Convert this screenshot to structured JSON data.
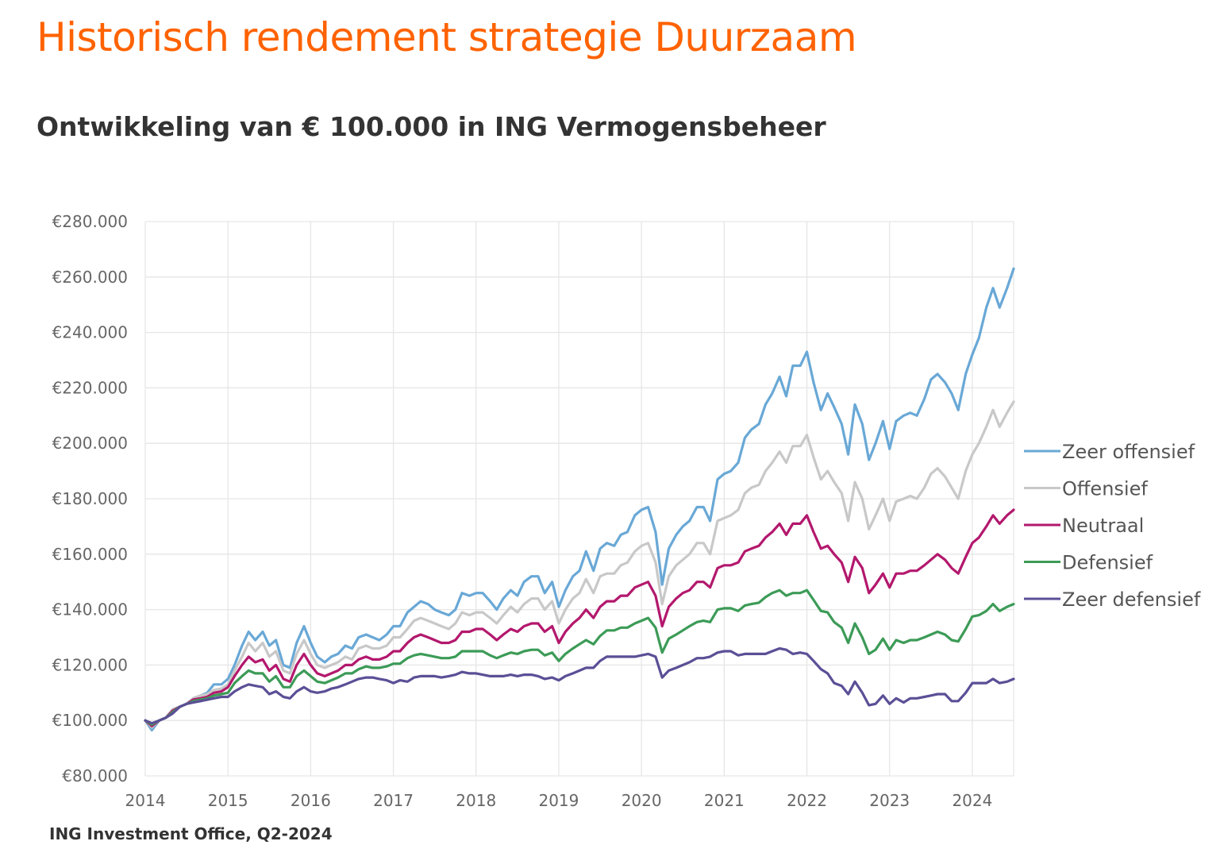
{
  "page": {
    "title": "Historisch rendement strategie Duurzaam",
    "subtitle": "Ontwikkeling van € 100.000 in ING Vermogensbeheer",
    "source": "ING Investment Office, Q2-2024",
    "title_color": "#ff6200"
  },
  "chart_data": {
    "type": "line",
    "title": "Historisch rendement strategie Duurzaam",
    "subtitle": "Ontwikkeling van € 100.000 in ING Vermogensbeheer",
    "xlabel": "",
    "ylabel": "",
    "xlim": [
      2014,
      2024.5
    ],
    "ylim": [
      80000,
      280000
    ],
    "x_ticks": [
      2014,
      2015,
      2016,
      2017,
      2018,
      2019,
      2020,
      2021,
      2022,
      2023,
      2024
    ],
    "x_tick_labels": [
      "2014",
      "2015",
      "2016",
      "2017",
      "2018",
      "2019",
      "2020",
      "2021",
      "2022",
      "2023",
      "2024"
    ],
    "y_ticks": [
      80000,
      100000,
      120000,
      140000,
      160000,
      180000,
      200000,
      220000,
      240000,
      260000,
      280000
    ],
    "y_tick_labels": [
      "€80.000",
      "€100.000",
      "€120.000",
      "€140.000",
      "€160.000",
      "€180.000",
      "€200.000",
      "€220.000",
      "€240.000",
      "€260.000",
      "€280.000"
    ],
    "grid": true,
    "legend_position": "right",
    "x": [
      2014.0,
      2014.08,
      2014.17,
      2014.25,
      2014.33,
      2014.42,
      2014.5,
      2014.58,
      2014.67,
      2014.75,
      2014.83,
      2014.92,
      2015.0,
      2015.08,
      2015.17,
      2015.25,
      2015.33,
      2015.42,
      2015.5,
      2015.58,
      2015.67,
      2015.75,
      2015.83,
      2015.92,
      2016.0,
      2016.08,
      2016.17,
      2016.25,
      2016.33,
      2016.42,
      2016.5,
      2016.58,
      2016.67,
      2016.75,
      2016.83,
      2016.92,
      2017.0,
      2017.08,
      2017.17,
      2017.25,
      2017.33,
      2017.42,
      2017.5,
      2017.58,
      2017.67,
      2017.75,
      2017.83,
      2017.92,
      2018.0,
      2018.08,
      2018.17,
      2018.25,
      2018.33,
      2018.42,
      2018.5,
      2018.58,
      2018.67,
      2018.75,
      2018.83,
      2018.92,
      2019.0,
      2019.08,
      2019.17,
      2019.25,
      2019.33,
      2019.42,
      2019.5,
      2019.58,
      2019.67,
      2019.75,
      2019.83,
      2019.92,
      2020.0,
      2020.08,
      2020.17,
      2020.25,
      2020.33,
      2020.42,
      2020.5,
      2020.58,
      2020.67,
      2020.75,
      2020.83,
      2020.92,
      2021.0,
      2021.08,
      2021.17,
      2021.25,
      2021.33,
      2021.42,
      2021.5,
      2021.58,
      2021.67,
      2021.75,
      2021.83,
      2021.92,
      2022.0,
      2022.08,
      2022.17,
      2022.25,
      2022.33,
      2022.42,
      2022.5,
      2022.58,
      2022.67,
      2022.75,
      2022.83,
      2022.92,
      2023.0,
      2023.08,
      2023.17,
      2023.25,
      2023.33,
      2023.42,
      2023.5,
      2023.58,
      2023.67,
      2023.75,
      2023.83,
      2023.92,
      2024.0,
      2024.08,
      2024.17,
      2024.25,
      2024.33,
      2024.42,
      2024.5
    ],
    "series": [
      {
        "name": "Zeer offensief",
        "color": "#69a8d6",
        "values": [
          100000,
          96500,
          100000,
          101000,
          104000,
          105000,
          106000,
          108000,
          109000,
          110000,
          113000,
          113000,
          115000,
          120000,
          127000,
          132000,
          129000,
          132000,
          127000,
          129000,
          120000,
          119000,
          128000,
          134000,
          128000,
          123000,
          121000,
          123000,
          124000,
          127000,
          126000,
          130000,
          131000,
          130000,
          129000,
          131000,
          134000,
          134000,
          139000,
          141000,
          143000,
          142000,
          140000,
          139000,
          138000,
          140000,
          146000,
          145000,
          146000,
          146000,
          143000,
          140000,
          144000,
          147000,
          145000,
          150000,
          152000,
          152000,
          146000,
          150000,
          141000,
          147000,
          152000,
          154000,
          161000,
          154000,
          162000,
          164000,
          163000,
          167000,
          168000,
          174000,
          176000,
          177000,
          168000,
          149000,
          162000,
          167000,
          170000,
          172000,
          177000,
          177000,
          172000,
          187000,
          189000,
          190000,
          193000,
          202000,
          205000,
          207000,
          214000,
          218000,
          224000,
          217000,
          228000,
          228000,
          233000,
          222000,
          212000,
          218000,
          213000,
          207000,
          196000,
          214000,
          207000,
          194000,
          200000,
          208000,
          198000,
          208000,
          210000,
          211000,
          210000,
          216000,
          223000,
          225000,
          222000,
          218000,
          212000,
          225000,
          232000,
          238000,
          249000,
          256000,
          249000,
          256000,
          263000
        ]
      },
      {
        "name": "Offensief",
        "color": "#c8c8c8",
        "values": [
          100000,
          97500,
          100000,
          101000,
          104000,
          105000,
          106000,
          108000,
          109000,
          109500,
          111000,
          111500,
          113000,
          118000,
          123000,
          128000,
          125000,
          128000,
          123000,
          125000,
          118000,
          117000,
          124000,
          129000,
          124000,
          120000,
          119000,
          120000,
          121000,
          123000,
          122000,
          126000,
          127000,
          126000,
          126000,
          127000,
          130000,
          130000,
          133000,
          136000,
          137000,
          136000,
          135000,
          134000,
          133000,
          135000,
          139000,
          138000,
          139000,
          139000,
          137000,
          135000,
          138000,
          141000,
          139000,
          142000,
          144000,
          144000,
          140000,
          143000,
          135000,
          140000,
          144000,
          146000,
          151000,
          146000,
          152000,
          153000,
          153000,
          156000,
          157000,
          161000,
          163000,
          164000,
          157000,
          142000,
          152000,
          156000,
          158000,
          160000,
          164000,
          164000,
          160000,
          172000,
          173000,
          174000,
          176000,
          182000,
          184000,
          185000,
          190000,
          193000,
          197000,
          193000,
          199000,
          199000,
          203000,
          195000,
          187000,
          190000,
          186000,
          182000,
          172000,
          186000,
          180000,
          169000,
          174000,
          180000,
          172000,
          179000,
          180000,
          181000,
          180000,
          184000,
          189000,
          191000,
          188000,
          184000,
          180000,
          190000,
          196000,
          200000,
          206000,
          212000,
          206000,
          211000,
          215000
        ]
      },
      {
        "name": "Neutraal",
        "color": "#b3186d",
        "values": [
          100000,
          98000,
          100000,
          101000,
          103500,
          105000,
          106000,
          107500,
          108000,
          108500,
          110000,
          110500,
          112000,
          116000,
          120000,
          123000,
          121000,
          122000,
          118000,
          120000,
          115000,
          114000,
          120000,
          124000,
          120000,
          117000,
          116000,
          117000,
          118000,
          120000,
          120000,
          122000,
          123000,
          122000,
          122000,
          123000,
          125000,
          125000,
          128000,
          130000,
          131000,
          130000,
          129000,
          128000,
          128000,
          129000,
          132000,
          132000,
          133000,
          133000,
          131000,
          129000,
          131000,
          133000,
          132000,
          134000,
          135000,
          135000,
          132000,
          134000,
          128000,
          132000,
          135000,
          137000,
          140000,
          137000,
          141000,
          143000,
          143000,
          145000,
          145000,
          148000,
          149000,
          150000,
          145000,
          134000,
          141000,
          144000,
          146000,
          147000,
          150000,
          150000,
          148000,
          155000,
          156000,
          156000,
          157000,
          161000,
          162000,
          163000,
          166000,
          168000,
          171000,
          167000,
          171000,
          171000,
          174000,
          168000,
          162000,
          163000,
          160000,
          157000,
          150000,
          159000,
          155000,
          146000,
          149000,
          153000,
          148000,
          153000,
          153000,
          154000,
          154000,
          156000,
          158000,
          160000,
          158000,
          155000,
          153000,
          159000,
          164000,
          166000,
          170000,
          174000,
          171000,
          174000,
          176000
        ]
      },
      {
        "name": "Defensief",
        "color": "#3c9b57",
        "values": [
          100000,
          98500,
          100000,
          101000,
          103000,
          105000,
          106000,
          107000,
          107500,
          108000,
          109000,
          109500,
          110000,
          113500,
          116000,
          118000,
          117000,
          117000,
          114000,
          116000,
          112000,
          112000,
          116000,
          118000,
          116000,
          114000,
          113500,
          114500,
          115500,
          117000,
          117000,
          118500,
          119500,
          119000,
          119000,
          119500,
          120500,
          120500,
          122500,
          123500,
          124000,
          123500,
          123000,
          122500,
          122500,
          123000,
          125000,
          125000,
          125000,
          125000,
          123500,
          122500,
          123500,
          124500,
          124000,
          125000,
          125500,
          125500,
          123500,
          124500,
          121500,
          124000,
          126000,
          127500,
          129000,
          127500,
          130500,
          132500,
          132500,
          133500,
          133500,
          135000,
          136000,
          137000,
          133500,
          124500,
          129500,
          131000,
          132500,
          134000,
          135500,
          136000,
          135500,
          140000,
          140500,
          140500,
          139500,
          141500,
          142000,
          142500,
          144500,
          146000,
          147000,
          145000,
          146000,
          146000,
          147000,
          143500,
          139500,
          139000,
          135500,
          133500,
          128000,
          135000,
          130000,
          124000,
          125500,
          129500,
          125500,
          129000,
          128000,
          129000,
          129000,
          130000,
          131000,
          132000,
          131000,
          129000,
          128500,
          133000,
          137500,
          138000,
          139500,
          142000,
          139500,
          141000,
          142000
        ]
      },
      {
        "name": "Zeer defensief",
        "color": "#5b4f96",
        "values": [
          100000,
          99000,
          100000,
          101000,
          102500,
          105000,
          106000,
          106500,
          107000,
          107500,
          108000,
          108500,
          108500,
          110500,
          112000,
          113000,
          112500,
          112000,
          109500,
          110500,
          108500,
          108000,
          110500,
          112000,
          110500,
          110000,
          110500,
          111500,
          112000,
          113000,
          114000,
          115000,
          115500,
          115500,
          115000,
          114500,
          113500,
          114500,
          114000,
          115500,
          116000,
          116000,
          116000,
          115500,
          116000,
          116500,
          117500,
          117000,
          117000,
          116500,
          116000,
          116000,
          116000,
          116500,
          116000,
          116500,
          116500,
          116000,
          115000,
          115500,
          114500,
          116000,
          117000,
          118000,
          119000,
          119000,
          121500,
          123000,
          123000,
          123000,
          123000,
          123000,
          123500,
          124000,
          123000,
          115500,
          118000,
          119000,
          120000,
          121000,
          122500,
          122500,
          123000,
          124500,
          125000,
          125000,
          123500,
          124000,
          124000,
          124000,
          124000,
          125000,
          126000,
          125500,
          124000,
          124500,
          124000,
          121500,
          118500,
          117000,
          113500,
          112500,
          109500,
          114000,
          110000,
          105500,
          106000,
          109000,
          106000,
          108000,
          106500,
          108000,
          108000,
          108500,
          109000,
          109500,
          109500,
          107000,
          107000,
          110000,
          113500,
          113500,
          113500,
          115000,
          113500,
          114000,
          115000
        ]
      }
    ]
  }
}
